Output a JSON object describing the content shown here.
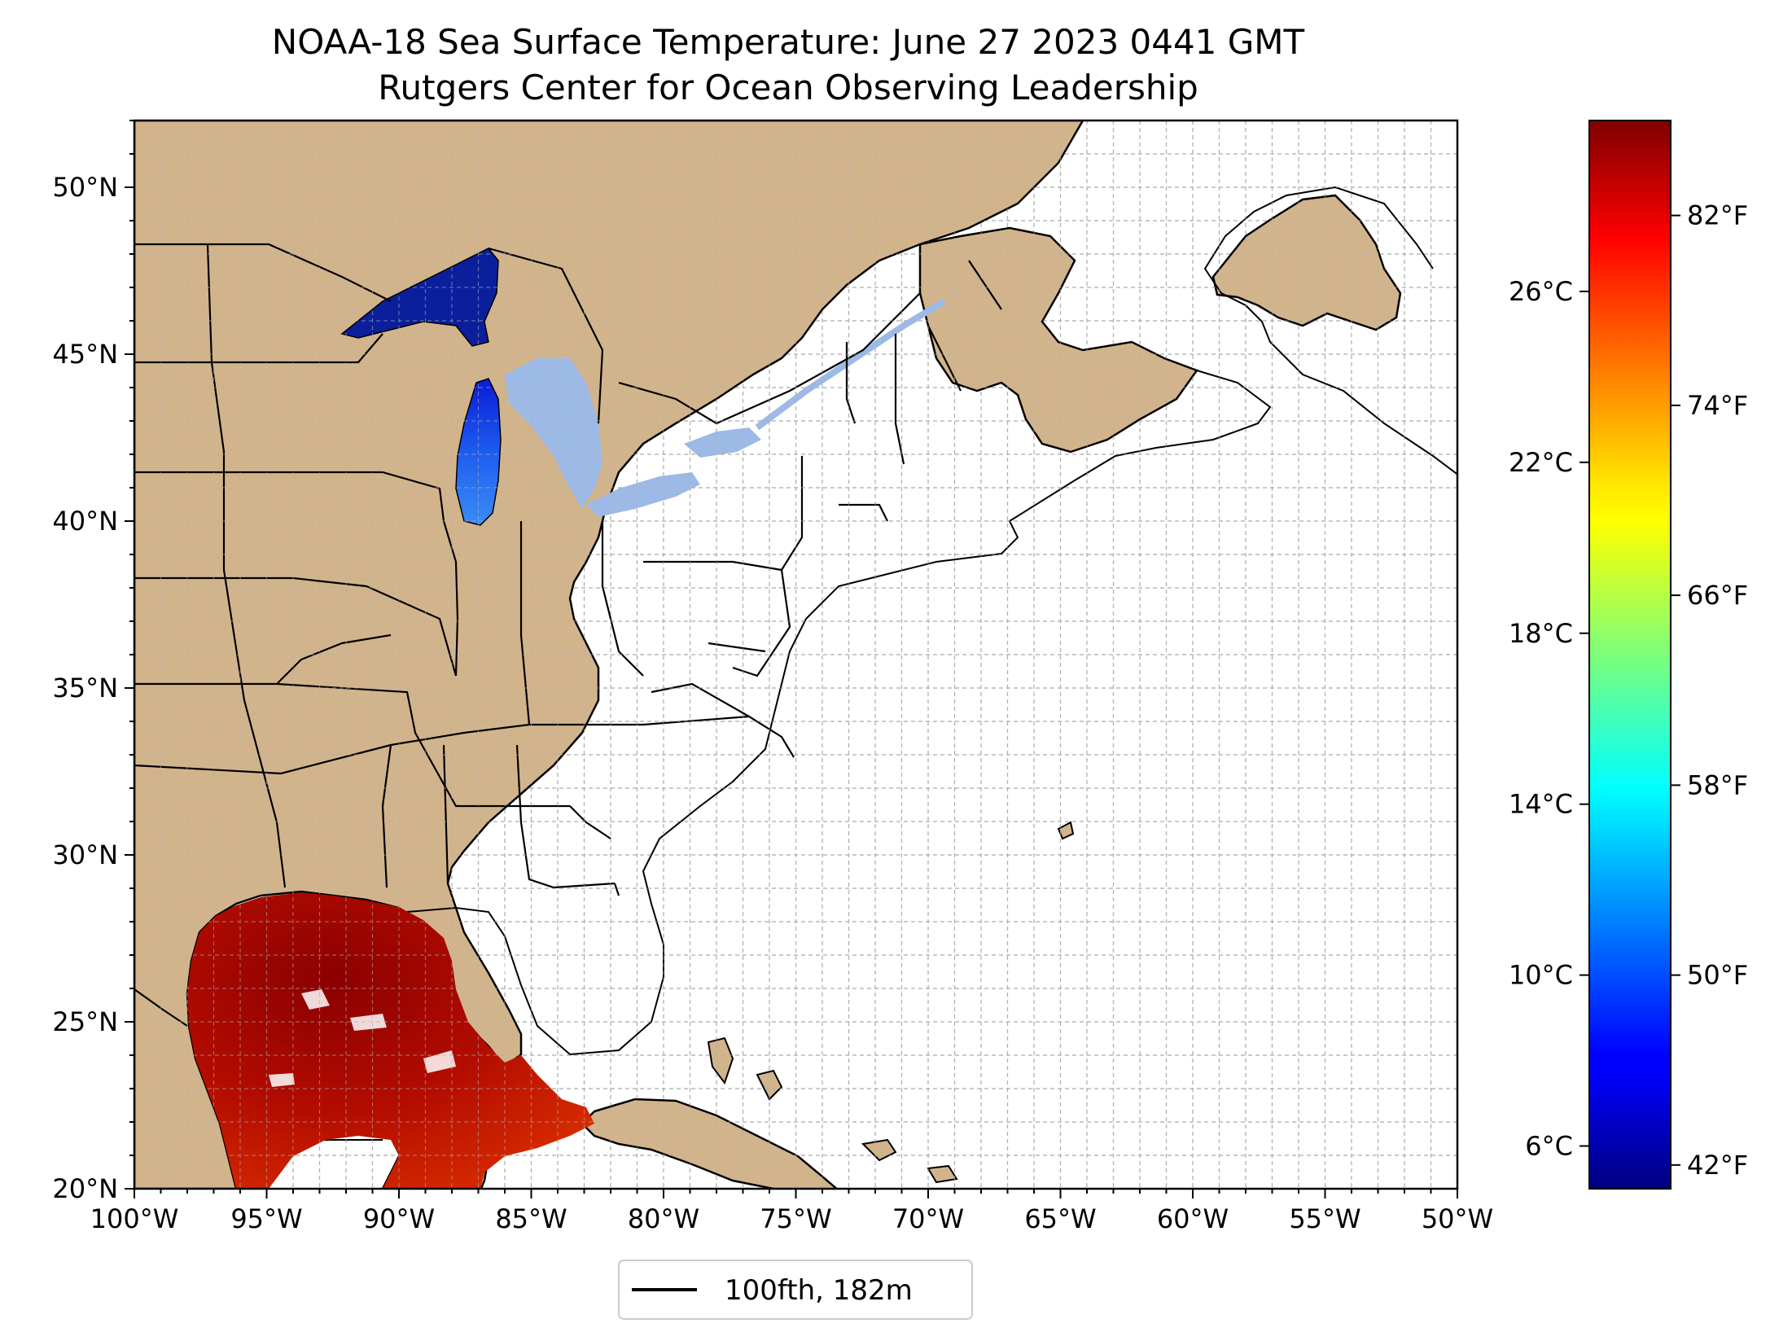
{
  "title": {
    "line1": "NOAA-18 Sea Surface Temperature: June 27 2023 0441 GMT",
    "line2": "Rutgers Center for Ocean Observing Leadership"
  },
  "map": {
    "lon_range": [
      -100,
      -50
    ],
    "lat_range": [
      20,
      52
    ],
    "lon_ticks": [
      {
        "value": -100,
        "label": "100°W"
      },
      {
        "value": -95,
        "label": "95°W"
      },
      {
        "value": -90,
        "label": "90°W"
      },
      {
        "value": -85,
        "label": "85°W"
      },
      {
        "value": -80,
        "label": "80°W"
      },
      {
        "value": -75,
        "label": "75°W"
      },
      {
        "value": -70,
        "label": "70°W"
      },
      {
        "value": -65,
        "label": "65°W"
      },
      {
        "value": -60,
        "label": "60°W"
      },
      {
        "value": -55,
        "label": "55°W"
      },
      {
        "value": -50,
        "label": "50°W"
      }
    ],
    "lat_ticks": [
      {
        "value": 20,
        "label": "20°N"
      },
      {
        "value": 25,
        "label": "25°N"
      },
      {
        "value": 30,
        "label": "30°N"
      },
      {
        "value": 35,
        "label": "35°N"
      },
      {
        "value": 40,
        "label": "40°N"
      },
      {
        "value": 45,
        "label": "45°N"
      },
      {
        "value": 50,
        "label": "50°N"
      }
    ],
    "grid": "on, dashed, 1° spacing",
    "land_color": "#d2b48c",
    "lake_color": "#9db9e6",
    "ocean_color": "#ffffff"
  },
  "colorbar": {
    "colormap": "jet",
    "range_c": [
      5,
      30
    ],
    "celsius_ticks": [
      {
        "value": 6,
        "label": "6°C"
      },
      {
        "value": 10,
        "label": "10°C"
      },
      {
        "value": 14,
        "label": "14°C"
      },
      {
        "value": 18,
        "label": "18°C"
      },
      {
        "value": 22,
        "label": "22°C"
      },
      {
        "value": 26,
        "label": "26°C"
      }
    ],
    "fahrenheit_ticks": [
      {
        "value": 42,
        "label": "42°F"
      },
      {
        "value": 50,
        "label": "50°F"
      },
      {
        "value": 58,
        "label": "58°F"
      },
      {
        "value": 66,
        "label": "66°F"
      },
      {
        "value": 74,
        "label": "74°F"
      },
      {
        "value": 82,
        "label": "82°F"
      }
    ]
  },
  "legend": {
    "placement": "bottom-center",
    "label": "100fth, 182m",
    "line_color": "#000000"
  }
}
